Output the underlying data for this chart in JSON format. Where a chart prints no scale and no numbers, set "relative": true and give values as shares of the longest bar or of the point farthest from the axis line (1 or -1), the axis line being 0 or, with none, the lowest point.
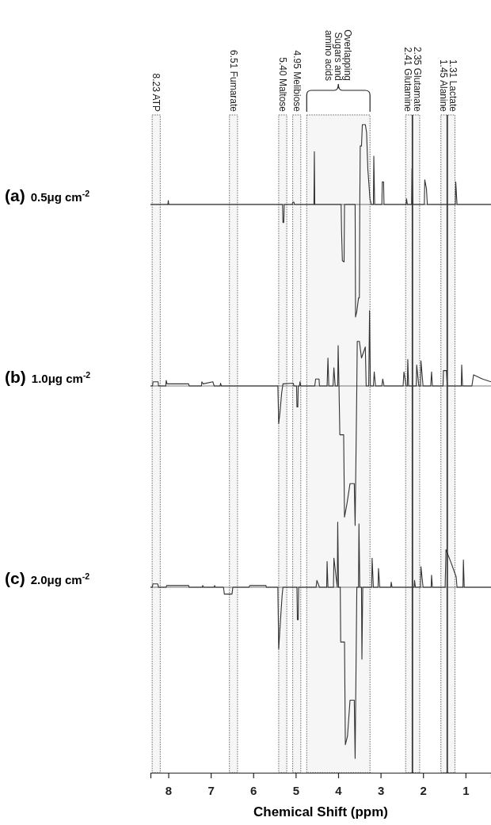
{
  "chart_data": [
    {
      "type": "line",
      "title": "(a) 0.5μg cm$^{-2}$",
      "relative": true,
      "xlim": [
        8.42,
        0.4
      ],
      "tick_labels": false,
      "series": [
        {
          "color": "#333333",
          "x": [
            8.42,
            8.01,
            8.0,
            7.99,
            5.31,
            5.3,
            5.28,
            5.27,
            5.08,
            5.07,
            5.04,
            5.03,
            4.57,
            4.56,
            4.55,
            3.93,
            3.92,
            3.9,
            3.86,
            3.85,
            3.6,
            3.59,
            3.56,
            3.52,
            3.5,
            3.49,
            3.48,
            3.45,
            3.43,
            3.36,
            3.33,
            3.3,
            3.25,
            3.22,
            3.17,
            3.16,
            3.14,
            2.97,
            2.96,
            2.93,
            2.92,
            2.4,
            2.39,
            2.37,
            2.27,
            2.26,
            2.24,
            1.97,
            1.96,
            1.92,
            1.9,
            1.24,
            1.23,
            1.2,
            0.4
          ],
          "values": [
            0,
            0,
            0.035,
            0,
            0,
            -0.16,
            -0.16,
            0,
            0,
            0.02,
            0.02,
            0,
            0,
            0.47,
            0,
            0,
            -0.23,
            -0.5,
            -0.51,
            0,
            0,
            -1,
            -0.95,
            -0.83,
            -0.83,
            0,
            0.52,
            0.52,
            0.71,
            0.71,
            0.64,
            0.31,
            0.05,
            0,
            0,
            0.43,
            0,
            0,
            0.2,
            0.2,
            0,
            0,
            0.05,
            0,
            0,
            0.32,
            0,
            0,
            0.22,
            0.14,
            0,
            0,
            0.2,
            0,
            0
          ]
        }
      ],
      "bands": [
        {
          "axis": "x",
          "from": 8.38,
          "to": 8.19,
          "label": "8.23 ATP"
        },
        {
          "axis": "x",
          "from": 6.56,
          "to": 6.37,
          "label": "6.51 Fumarate"
        },
        {
          "axis": "x",
          "from": 5.4,
          "to": 5.21,
          "label": "5.40 Maltose"
        },
        {
          "axis": "x",
          "from": 5.07,
          "to": 4.88,
          "label": "4.95 Melibiose"
        },
        {
          "axis": "x",
          "from": 4.74,
          "to": 3.25
        },
        {
          "axis": "x",
          "from": 2.41,
          "to": 2.08,
          "label": "2.35 Glutamate\n2.41 Glutamine"
        },
        {
          "axis": "x",
          "from": 1.58,
          "to": 1.25,
          "label": "1.31 Lactate\n1.45 Alanine"
        }
      ],
      "ref_lines": [
        {
          "axis": "x",
          "value": 2.25
        },
        {
          "axis": "x",
          "value": 1.43
        }
      ],
      "annotations": [
        "Overlapping\nSugars and\namino acids"
      ]
    },
    {
      "type": "line",
      "title": "(b) 1.0μg cm$^{-2}$",
      "relative": true,
      "xlim": [
        8.42,
        0.4
      ],
      "tick_labels": false,
      "series": [
        {
          "color": "#333333",
          "x": [
            8.42,
            8.37,
            8.36,
            8.24,
            8.23,
            8.06,
            8.05,
            8.03,
            7.52,
            7.51,
            7.22,
            7.21,
            7.18,
            6.95,
            6.92,
            6.78,
            6.77,
            6.75,
            5.42,
            5.4,
            5.37,
            5.33,
            5.3,
            5.06,
            5.04,
            4.98,
            4.97,
            4.95,
            4.94,
            4.91,
            4.9,
            4.88,
            4.55,
            4.53,
            4.45,
            4.44,
            4.26,
            4.24,
            4.22,
            4.12,
            4.1,
            4.07,
            4.01,
            4.0,
            3.98,
            3.96,
            3.87,
            3.85,
            3.79,
            3.72,
            3.62,
            3.6,
            3.56,
            3.55,
            3.5,
            3.45,
            3.36,
            3.34,
            3.28,
            3.26,
            3.24,
            3.17,
            3.15,
            3.12,
            2.97,
            2.95,
            2.92,
            2.47,
            2.45,
            2.4,
            2.37,
            2.36,
            2.34,
            2.16,
            2.15,
            2.1,
            2.06,
            2.05,
            2.0,
            1.82,
            1.8,
            1.78,
            1.53,
            1.52,
            1.45,
            1.43,
            1.1,
            1.09,
            1.07,
            0.85,
            0.81,
            0.6,
            0.4
          ],
          "values": [
            0,
            0,
            0.03,
            0.03,
            0,
            0,
            0.04,
            0.015,
            0.015,
            0,
            0,
            0.03,
            0.015,
            0.03,
            0,
            0,
            0.02,
            0,
            0,
            -0.27,
            -0.19,
            -0.05,
            0.015,
            0.02,
            0,
            0,
            -0.15,
            -0.15,
            0,
            0,
            0.03,
            0,
            0,
            0.05,
            0.05,
            0,
            0,
            0.2,
            0,
            0,
            0.13,
            0,
            0,
            0.29,
            0,
            -0.35,
            -0.35,
            -0.94,
            -0.84,
            -0.7,
            -0.7,
            -1,
            0,
            0.32,
            0.32,
            0.2,
            0.28,
            0,
            0,
            0.54,
            0,
            0,
            0.1,
            0,
            0,
            0.05,
            0,
            0,
            0.1,
            0,
            0,
            0.19,
            0,
            0,
            0.15,
            0,
            0,
            0.18,
            0,
            0,
            0.1,
            0,
            0,
            0.11,
            0.11,
            0,
            0,
            0.15,
            0,
            0,
            0.08,
            0.05,
            0.03
          ]
        }
      ]
    },
    {
      "type": "line",
      "title": "(c) 2.0μg cm$^{-2}$",
      "relative": true,
      "xlim": [
        8.42,
        0.4
      ],
      "tick_labels": "x",
      "xlabel": "Chemical Shift (ppm)",
      "xticks": [
        8,
        7,
        6,
        5,
        4,
        3,
        2,
        1
      ],
      "series": [
        {
          "color": "#333333",
          "x": [
            8.42,
            8.38,
            8.36,
            8.25,
            8.23,
            8.05,
            8.04,
            7.52,
            7.51,
            7.2,
            7.19,
            7.17,
            6.92,
            6.91,
            6.89,
            6.7,
            6.68,
            6.5,
            6.48,
            6.1,
            6.08,
            5.7,
            5.69,
            5.42,
            5.4,
            5.36,
            5.32,
            5.3,
            4.97,
            4.96,
            4.94,
            4.93,
            4.52,
            4.5,
            4.44,
            4.27,
            4.26,
            4.24,
            4.11,
            4.1,
            4.02,
            4.01,
            3.99,
            3.95,
            3.94,
            3.85,
            3.83,
            3.78,
            3.72,
            3.62,
            3.6,
            3.56,
            3.52,
            3.51,
            3.49,
            3.45,
            3.44,
            3.42,
            3.21,
            3.2,
            3.17,
            3.06,
            3.05,
            3.02,
            2.76,
            2.75,
            2.73,
            2.21,
            2.2,
            2.18,
            2.06,
            2.05,
            2.0,
            1.81,
            1.8,
            1.78,
            1.48,
            1.46,
            1.35,
            1.22,
            1.2,
            1.06,
            1.05,
            1.03,
            0.4
          ],
          "values": [
            0,
            0,
            0.02,
            0.02,
            0,
            0,
            0.01,
            0.01,
            0,
            0,
            0.01,
            0,
            0,
            0.01,
            0,
            0,
            -0.04,
            -0.04,
            0,
            0,
            0.01,
            0.01,
            0,
            0,
            -0.36,
            -0.2,
            -0.05,
            0,
            0,
            -0.19,
            -0.19,
            0,
            0,
            0.04,
            0,
            0,
            0.15,
            0,
            0,
            0.17,
            0,
            0.38,
            0,
            0,
            -0.32,
            -0.32,
            -0.92,
            -0.87,
            -0.66,
            -0.66,
            -1,
            0,
            0,
            0.37,
            0,
            0,
            -0.42,
            0,
            0,
            0.17,
            0,
            0,
            0.11,
            0,
            0,
            0.03,
            0,
            0,
            0.04,
            0,
            0,
            0.12,
            0,
            0,
            0.07,
            0,
            0,
            0.22,
            0.15,
            0.06,
            0,
            0,
            0.16,
            0,
            0
          ]
        }
      ]
    }
  ]
}
